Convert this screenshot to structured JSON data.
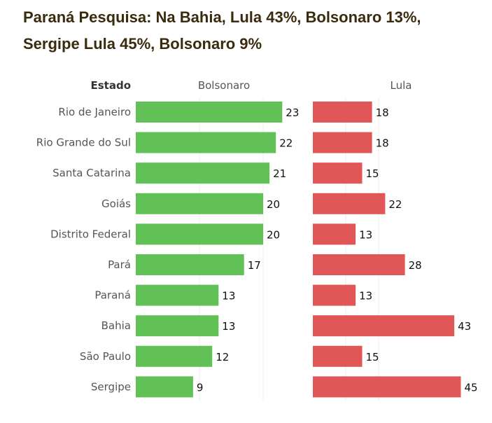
{
  "title_lines": [
    "Paraná Pesquisa: Na Bahia, Lula 43%, Bolsonaro 13%,",
    "Sergipe Lula 45%, Bolsonaro 9%"
  ],
  "chart_data": {
    "type": "bar",
    "row_header": "Estado",
    "categories": [
      "Rio de Janeiro",
      "Rio Grande do Sul",
      "Santa Catarina",
      "Goiás",
      "Distrito Federal",
      "Pará",
      "Paraná",
      "Bahia",
      "São Paulo",
      "Sergipe"
    ],
    "series": [
      {
        "name": "Bolsonaro",
        "color": "#62c156",
        "values": [
          23,
          22,
          21,
          20,
          20,
          17,
          13,
          13,
          12,
          9
        ]
      },
      {
        "name": "Lula",
        "color": "#e15656",
        "values": [
          18,
          18,
          15,
          22,
          13,
          28,
          13,
          43,
          15,
          45
        ]
      }
    ],
    "grid": true
  }
}
